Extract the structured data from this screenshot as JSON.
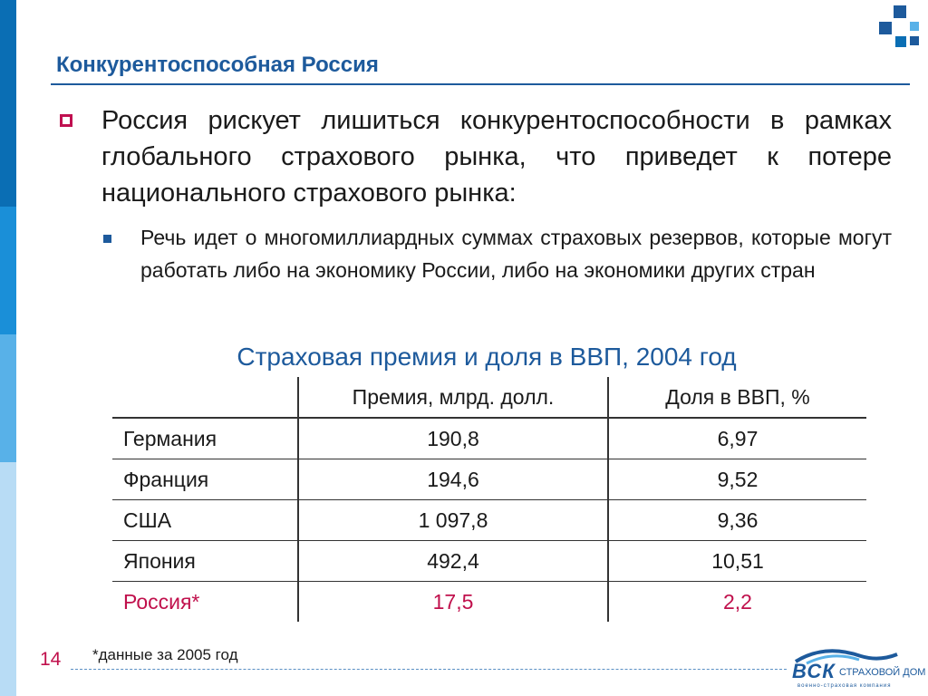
{
  "slide": {
    "title": "Конкурентоспособная Россия",
    "bullet1": "Россия рискует лишиться конкурентоспособности в рамках глобального страхового рынка, что приведет к потере национального страхового рынка:",
    "bullet2": "Речь идет о многомиллиардных суммах страховых резервов, которые могут работать либо на экономику России, либо на экономики других стран",
    "page_number": "14",
    "footnote": "*данные за 2005 год"
  },
  "table": {
    "title": "Страховая премия и доля в ВВП, 2004 год",
    "headers": [
      "",
      "Премия, млрд. долл.",
      "Доля в ВВП, %"
    ],
    "rows": [
      {
        "country": "Германия",
        "premium": "190,8",
        "share": "6,97"
      },
      {
        "country": "Франция",
        "premium": "194,6",
        "share": "9,52"
      },
      {
        "country": "США",
        "premium": "1 097,8",
        "share": "9,36"
      },
      {
        "country": "Япония",
        "premium": "492,4",
        "share": "10,51"
      },
      {
        "country": "Россия*",
        "premium": "17,5",
        "share": "2,2"
      }
    ]
  },
  "logo": {
    "word": "ВСК",
    "sub": "СТРАХОВОЙ ДОМ",
    "tagline": "военно-страховая компания"
  },
  "colors": {
    "brand_blue": "#1d5a9c",
    "accent_red": "#c0104c"
  }
}
